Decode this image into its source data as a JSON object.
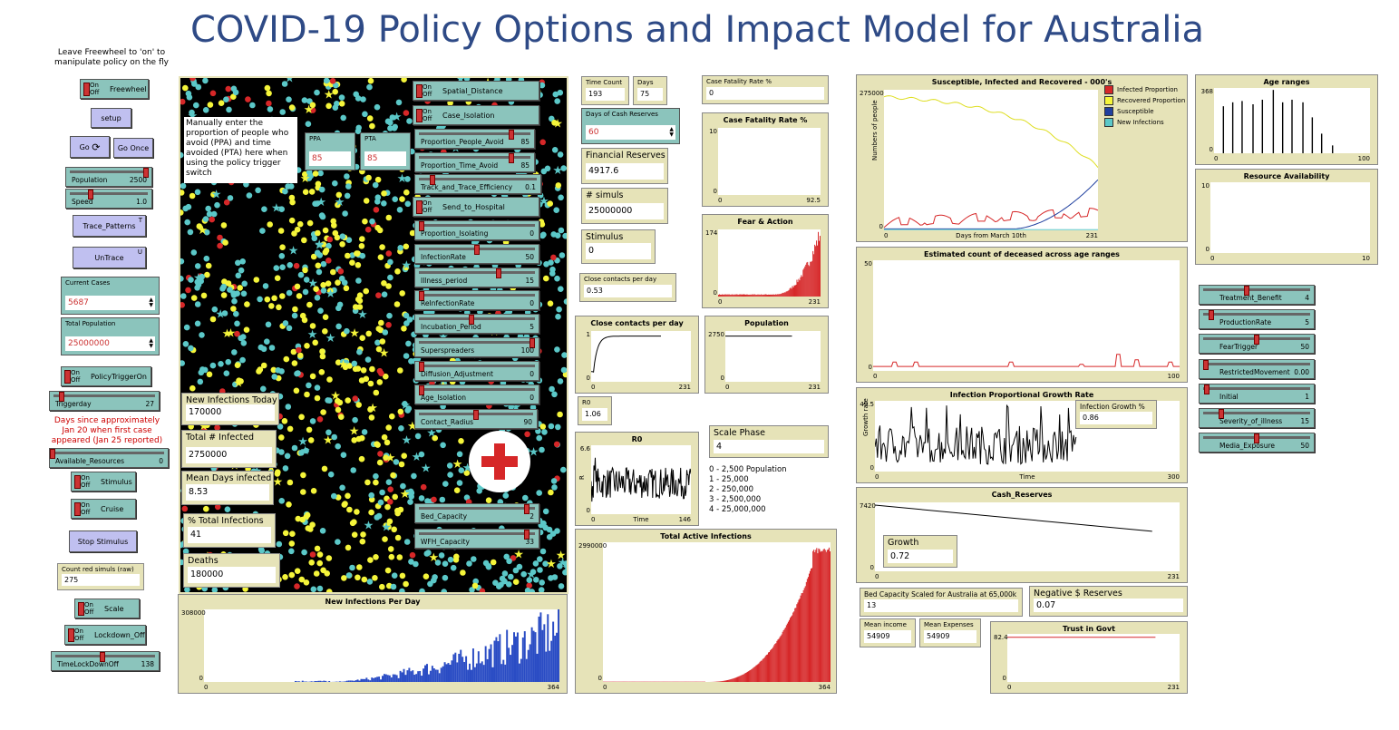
{
  "title": "COVID-19 Policy Options and Impact Model for Australia",
  "freewheel_note": "Leave Freewheel to 'on' to manipulate policy on the fly",
  "left_controls": {
    "freewheel": {
      "label": "Freewheel",
      "onoff": "On Off"
    },
    "setup": "setup",
    "go": "Go",
    "go_once": "Go Once",
    "population": {
      "label": "Population",
      "value": "2500"
    },
    "speed": {
      "label": "Speed",
      "value": "1.0"
    },
    "trace_patterns": {
      "label": "Trace_Patterns",
      "key": "T"
    },
    "untrace": {
      "label": "UnTrace",
      "key": "U"
    },
    "current_cases": {
      "label": "Current Cases",
      "value": "5687"
    },
    "total_population": {
      "label": "Total Population",
      "value": "25000000"
    },
    "policy_trigger": {
      "label": "PolicyTriggerOn",
      "onoff": "On Off"
    },
    "triggerday": {
      "label": "Triggerday",
      "value": "27"
    },
    "days_note": "Days since approximately Jan 20 when first case appeared (Jan 25 reported)",
    "available_resources": {
      "label": "Available_Resources",
      "value": "0"
    },
    "stimulus": {
      "label": "Stimulus",
      "onoff": "On Off"
    },
    "cruise": {
      "label": "Cruise",
      "onoff": "On Off"
    },
    "stop_stimulus": "Stop Stimulus",
    "count_red": {
      "label": "Count red simuls (raw)",
      "value": "275"
    },
    "scale": {
      "label": "Scale",
      "onoff": "On Off"
    },
    "lockdown": {
      "label": "Lockdown_Off",
      "onoff": "On Off"
    },
    "timelockdown": {
      "label": "TimeLockDownOff",
      "value": "138"
    }
  },
  "view_overlay": {
    "instructions": "Manually enter the proportion of people who avoid (PPA) and time avoided (PTA) here when using the policy trigger switch",
    "ppa": {
      "label": "PPA",
      "value": "85"
    },
    "pta": {
      "label": "PTA",
      "value": "85"
    },
    "monitors": [
      {
        "label": "New Infections Today",
        "value": "170000"
      },
      {
        "label": "Total # Infected",
        "value": "2750000"
      },
      {
        "label": "Mean Days infected",
        "value": "8.53"
      },
      {
        "label": "% Total Infections",
        "value": "41"
      },
      {
        "label": "Deaths",
        "value": "180000"
      }
    ],
    "switches": [
      {
        "label": "Spatial_Distance",
        "onoff": "On Off"
      },
      {
        "label": "Case_Isolation",
        "onoff": "On Off"
      },
      {
        "label": "Send_to_Hospital",
        "onoff": "On Off"
      }
    ],
    "sliders": [
      {
        "label": "Proportion_People_Avoid",
        "value": "85",
        "frac": 0.85
      },
      {
        "label": "Proportion_Time_Avoid",
        "value": "85",
        "frac": 0.85
      },
      {
        "label": "Track_and_Trace_Efficiency",
        "value": "0.1",
        "frac": 0.1
      },
      {
        "label": "Proportion_Isolating",
        "value": "0",
        "frac": 0
      },
      {
        "label": "InfectionRate",
        "value": "50",
        "frac": 0.5
      },
      {
        "label": "Illness_period",
        "value": "15",
        "frac": 0.7
      },
      {
        "label": "ReInfectionRate",
        "value": "0",
        "frac": 0
      },
      {
        "label": "Incubation_Period",
        "value": "5",
        "frac": 0.45
      },
      {
        "label": "Superspreaders",
        "value": "100",
        "frac": 1
      },
      {
        "label": "Diffusion_Adjustment",
        "value": "0",
        "frac": 0
      },
      {
        "label": "Age_Isolation",
        "value": "0",
        "frac": 0
      },
      {
        "label": "Contact_Radius",
        "value": "90",
        "frac": 0.5
      },
      {
        "label": "Bed_Capacity",
        "value": "2",
        "frac": 0.95
      },
      {
        "label": "WFH_Capacity",
        "value": "33",
        "frac": 0.95
      }
    ]
  },
  "middle": {
    "time_count": {
      "label": "Time Count",
      "value": "193"
    },
    "days": {
      "label": "Days",
      "value": "75"
    },
    "cash_reserves_days": {
      "label": "Days of Cash Reserves",
      "value": "60"
    },
    "financial_reserves": {
      "label": "Financial Reserves",
      "value": "4917.6"
    },
    "simuls": {
      "label": "# simuls",
      "value": "25000000"
    },
    "stimulus": {
      "label": "Stimulus",
      "value": "0"
    },
    "close_contacts": {
      "label": "Close contacts per day",
      "value": "0.53"
    },
    "r0": {
      "label": "R0",
      "value": "1.06"
    },
    "case_fatality_rate": {
      "label": "Case Fatality Rate %",
      "value": "0"
    },
    "scale_phase": {
      "label": "Scale Phase",
      "value": "4"
    },
    "scale_list": [
      "0 - 2,500 Population",
      "1 - 25,000",
      "2 - 250,000",
      "3 - 2,500,000",
      "4 - 25,000,000"
    ]
  },
  "plots": {
    "cfr": {
      "title": "Case Fatality Rate %",
      "ymax": "10",
      "ymin": "0",
      "xmin": "0",
      "xmax": "92.5"
    },
    "fear": {
      "title": "Fear & Action",
      "ymax": "174",
      "ymin": "0",
      "xmin": "0",
      "xmax": "231"
    },
    "close_contacts": {
      "title": "Close contacts per day",
      "ymax": "1",
      "ymin": "0",
      "xmin": "0",
      "xmax": "231"
    },
    "population": {
      "title": "Population",
      "ymax": "2750",
      "ymin": "0",
      "xmin": "0",
      "xmax": "231"
    },
    "r0": {
      "title": "R0",
      "ymax": "6.6",
      "ymin": "0",
      "xmin": "0",
      "xmax": "146",
      "xlabel": "Time",
      "ylabel": "R"
    },
    "active": {
      "title": "Total Active Infections",
      "ymax": "2990000",
      "ymin": "0",
      "xmin": "0",
      "xmax": "364"
    },
    "new_infections": {
      "title": "New Infections Per Day",
      "ymax": "308000",
      "ymin": "0",
      "xmin": "0",
      "xmax": "364"
    },
    "sir": {
      "title": "Susceptible, Infected and Recovered - 000's",
      "ymax": "275000",
      "ymin": "0",
      "xmin": "0",
      "xmax": "231",
      "xlabel": "Days  from  March 10th",
      "ylabel": "Numbers of people"
    },
    "deceased": {
      "title": "Estimated count of deceased across age ranges",
      "ymax": "50",
      "ymin": "0",
      "xmin": "0",
      "xmax": "100"
    },
    "growth": {
      "title": "Infection Proportional Growth Rate",
      "ymax": "49.5",
      "ymin": "0",
      "xmin": "0",
      "xmax": "300",
      "xlabel": "Time",
      "ylabel": "Growth rate"
    },
    "cash": {
      "title": "Cash_Reserves",
      "ymax": "7420",
      "ymin": "0",
      "xmin": "0",
      "xmax": "231"
    },
    "trust": {
      "title": "Trust in Govt",
      "ymax": "82.4",
      "ymin": "0",
      "xmin": "0",
      "xmax": "231"
    },
    "age": {
      "title": "Age ranges",
      "ymax": "368",
      "ymin": "0",
      "xmin": "0",
      "xmax": "100"
    },
    "resource": {
      "title": "Resource Availability",
      "ymax": "10",
      "ymin": "0",
      "xmin": "0",
      "xmax": "10"
    }
  },
  "sir_legend": [
    {
      "label": "Infected Proportion",
      "color": "#d62728"
    },
    {
      "label": "Recovered Proportion",
      "color": "#f5f53a"
    },
    {
      "label": "Susceptible",
      "color": "#1f3f9f"
    },
    {
      "label": "New Infections",
      "color": "#5bc8c8"
    }
  ],
  "growth_monitor": {
    "label": "Infection Growth %",
    "value": "0.86"
  },
  "cash_growth": {
    "label": "Growth",
    "value": "0.72"
  },
  "bed_capacity": {
    "label": "Bed Capacity Scaled for Australia at 65,000k",
    "value": "13"
  },
  "negative_reserves": {
    "label": "Negative $ Reserves",
    "value": "0.07"
  },
  "mean_income": {
    "label": "Mean income",
    "value": "54909"
  },
  "mean_expenses": {
    "label": "Mean Expenses",
    "value": "54909"
  },
  "right_sliders": [
    {
      "label": "Treatment_Benefit",
      "value": "4",
      "frac": 0.4
    },
    {
      "label": "ProductionRate",
      "value": "5",
      "frac": 0.05
    },
    {
      "label": "FearTrigger",
      "value": "50",
      "frac": 0.5
    },
    {
      "label": "RestrictedMovement",
      "value": "0.00",
      "frac": 0
    },
    {
      "label": "Initial",
      "value": "1",
      "frac": 0.01
    },
    {
      "label": "Severity_of_illness",
      "value": "15",
      "frac": 0.15
    },
    {
      "label": "Media_Exposure",
      "value": "50",
      "frac": 0.5
    }
  ],
  "colors": {
    "plot_bg": "#e6e3b8",
    "widget": "#8bc4bc",
    "button": "#c0c0f0",
    "title": "#2e4a86",
    "red": "#d62728"
  }
}
